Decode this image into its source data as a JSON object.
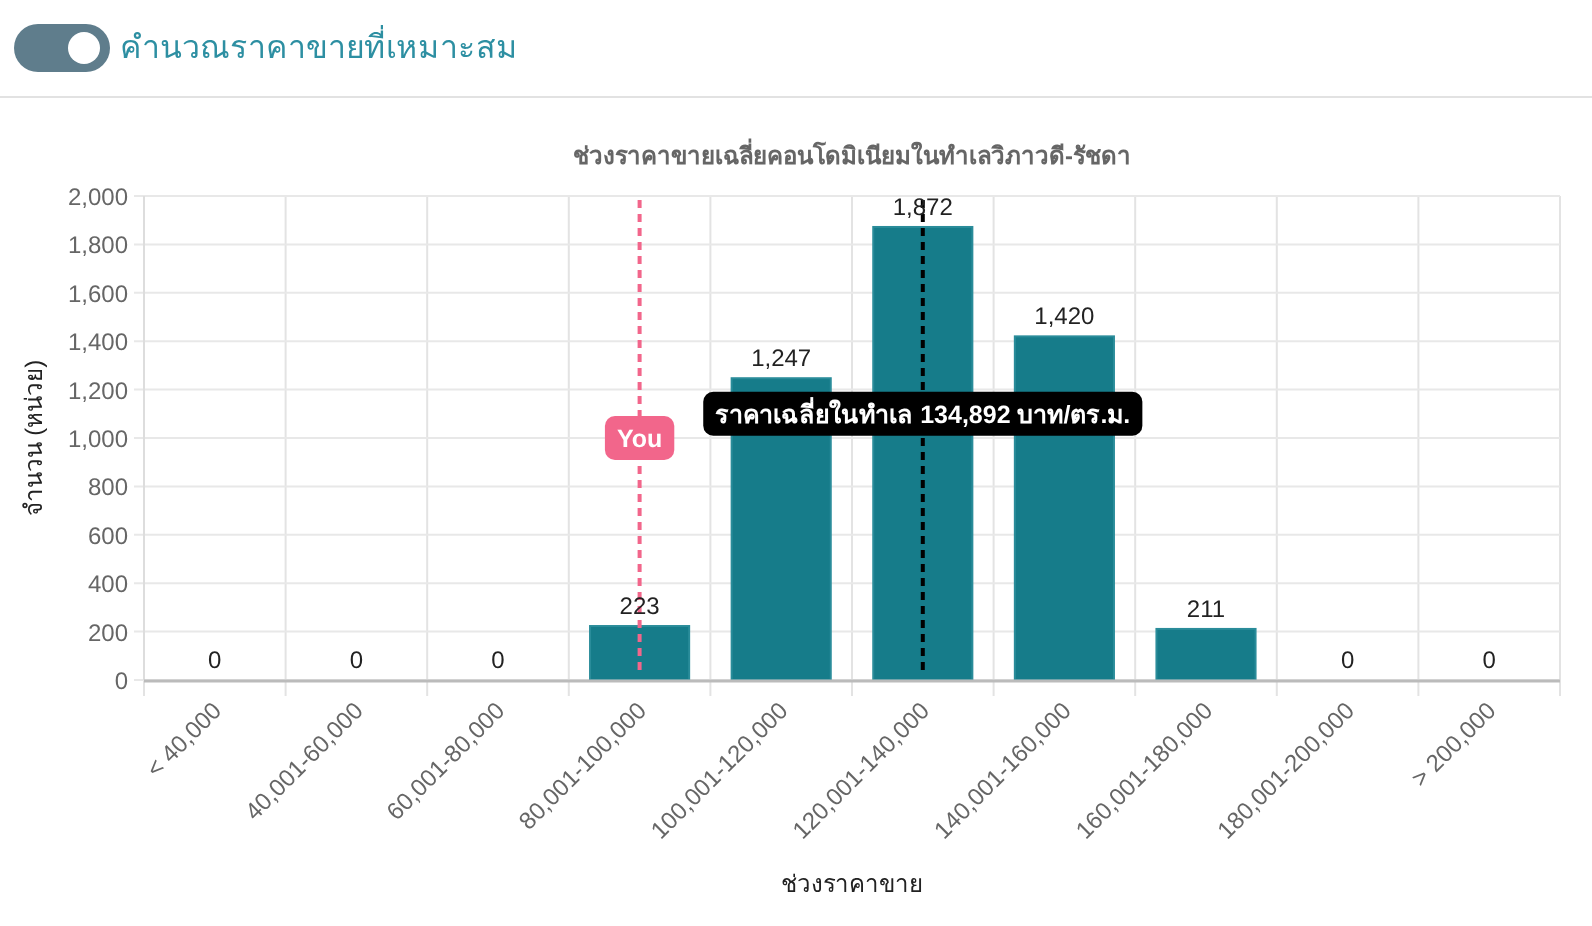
{
  "chart_data": {
    "type": "bar",
    "title": "ช่วงราคาขายเฉลี่ยคอนโดมิเนียมในทำเลวิภาวดี-รัชดา",
    "xlabel": "ช่วงราคาขาย",
    "ylabel": "จำนวน (หน่วย)",
    "annotations": [
      "คำนวณราคาขายที่เหมาะสม"
    ],
    "categories": [
      "< 40,000",
      "40,001-60,000",
      "60,001-80,000",
      "80,001-100,000",
      "100,001-120,000",
      "120,001-140,000",
      "140,001-160,000",
      "160,001-180,000",
      "180,001-200,000",
      "> 200,000"
    ],
    "values": [
      0,
      0,
      0,
      223,
      1247,
      1872,
      1420,
      211,
      0,
      0
    ],
    "color": "#167c8a",
    "value_labels": [
      "0",
      "0",
      "0",
      "223",
      "1,247",
      "1,872",
      "1,420",
      "211",
      "0",
      "0"
    ],
    "ylim": [
      0,
      2000
    ],
    "yticks": [
      0,
      200,
      400,
      600,
      800,
      {
        "value": 1000,
        "label": "1,000"
      },
      {
        "value": 1200,
        "label": "1,200"
      },
      {
        "value": 1400,
        "label": "1,400"
      },
      {
        "value": 1600,
        "label": "1,600"
      },
      {
        "value": 1800,
        "label": "1,800"
      },
      {
        "value": 2000,
        "label": "2,000"
      }
    ],
    "grid": true,
    "ref_lines": [
      {
        "axis": "x",
        "value": "80,001-100,000",
        "label": "You",
        "color": "#f2668b",
        "line_style": "dashed"
      },
      {
        "axis": "x",
        "value": "120,001-140,000",
        "label": "ราคาเฉลี่ยในทำเล 134,892 บาท/ตร.ม.",
        "color": "#000000",
        "line_style": "dashed"
      }
    ]
  }
}
